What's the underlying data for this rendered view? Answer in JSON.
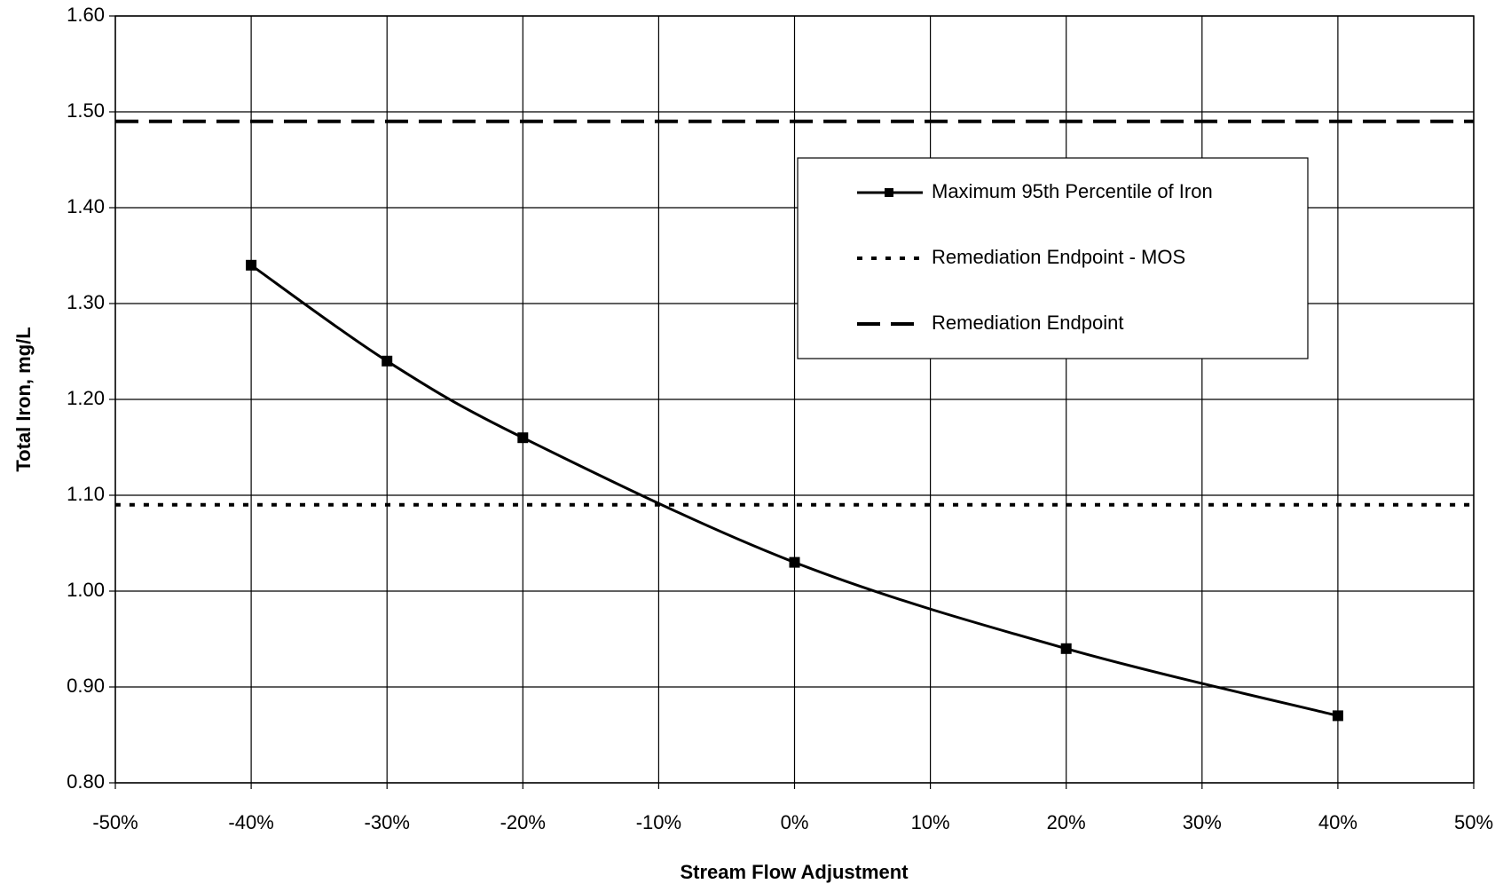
{
  "chart_data": {
    "type": "line",
    "x_label": "Stream Flow Adjustment",
    "y_label": "Total Iron, mg/L",
    "series": [
      {
        "name": "Maximum 95th Percentile of Iron",
        "color": "#000000",
        "line_style": "solid",
        "marker": "square",
        "x": [
          -40,
          -30,
          -20,
          0,
          20,
          40
        ],
        "values": [
          1.34,
          1.24,
          1.16,
          1.03,
          0.94,
          0.87
        ]
      },
      {
        "name": "Remediation Endpoint - MOS",
        "color": "#000000",
        "line_style": "dotted",
        "x": [
          -50,
          50
        ],
        "values": [
          1.09,
          1.09
        ]
      },
      {
        "name": "Remediation Endpoint",
        "color": "#000000",
        "line_style": "dashed",
        "x": [
          -50,
          50
        ],
        "values": [
          1.49,
          1.49
        ]
      }
    ],
    "xlim": [
      -50,
      50
    ],
    "xticks": [
      {
        "value": -50,
        "label": "-50%"
      },
      {
        "value": -40,
        "label": "-40%"
      },
      {
        "value": -30,
        "label": "-30%"
      },
      {
        "value": -20,
        "label": "-20%"
      },
      {
        "value": -10,
        "label": "-10%"
      },
      {
        "value": 0,
        "label": "0%"
      },
      {
        "value": 10,
        "label": "10%"
      },
      {
        "value": 20,
        "label": "20%"
      },
      {
        "value": 30,
        "label": "30%"
      },
      {
        "value": 40,
        "label": "40%"
      },
      {
        "value": 50,
        "label": "50%"
      }
    ],
    "ylim": [
      0.8,
      1.6
    ],
    "yticks": [
      {
        "value": 0.8,
        "label": "0.80"
      },
      {
        "value": 0.9,
        "label": "0.90"
      },
      {
        "value": 1.0,
        "label": "1.00"
      },
      {
        "value": 1.1,
        "label": "1.10"
      },
      {
        "value": 1.2,
        "label": "1.20"
      },
      {
        "value": 1.3,
        "label": "1.30"
      },
      {
        "value": 1.4,
        "label": "1.40"
      },
      {
        "value": 1.5,
        "label": "1.50"
      },
      {
        "value": 1.6,
        "label": "1.60"
      }
    ],
    "grid": true,
    "legend": "upper right"
  }
}
